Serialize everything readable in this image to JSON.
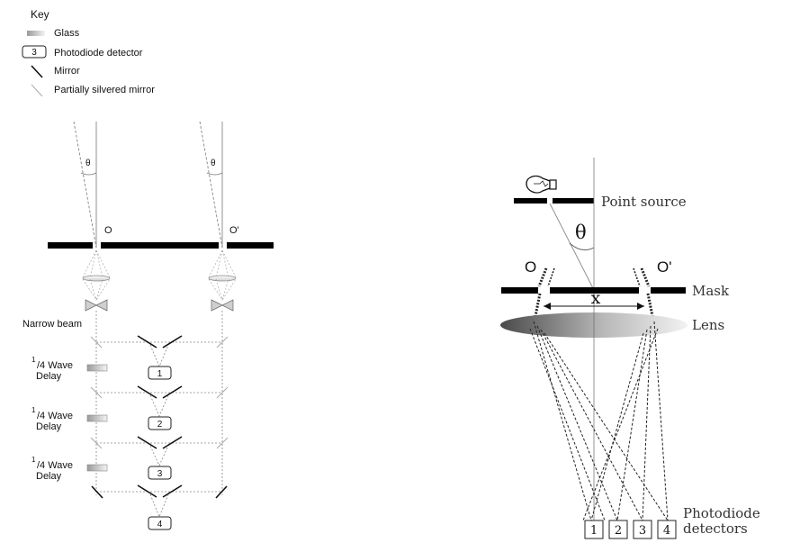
{
  "key": {
    "title": "Key",
    "glass": "Glass",
    "detector_sample": "3",
    "detector": "Photodiode detector",
    "mirror": "Mirror",
    "partial_mirror": "Partially silvered mirror"
  },
  "left": {
    "theta_left": "θ",
    "theta_right": "θ",
    "aperture_o": "O",
    "aperture_o_prime": "O'",
    "narrow_beam": "Narrow beam",
    "delays": [
      {
        "sup": "1",
        "frac": "/4 Wave",
        "line2": "Delay"
      },
      {
        "sup": "1",
        "frac": "/4 Wave",
        "line2": "Delay"
      },
      {
        "sup": "1",
        "frac": "/4 Wave",
        "line2": "Delay"
      }
    ],
    "detectors": [
      "1",
      "2",
      "3",
      "4"
    ]
  },
  "right": {
    "point_source": "Point source",
    "theta": "θ",
    "aperture_o": "O",
    "aperture_o_prime": "O'",
    "mask": "Mask",
    "separation": "x",
    "lens": "Lens",
    "detectors": [
      "1",
      "2",
      "3",
      "4"
    ],
    "detectors_label_line1": "Photodiode",
    "detectors_label_line2": "detectors"
  }
}
